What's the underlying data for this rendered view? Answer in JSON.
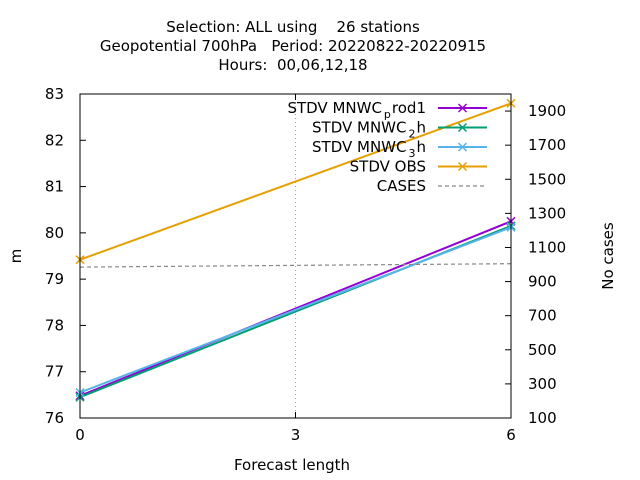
{
  "chart_data": {
    "type": "line",
    "title_lines": [
      "Selection: ALL using    26 stations",
      "Geopotential 700hPa   Period: 20220822-20220915",
      "Hours:  00,06,12,18"
    ],
    "xlabel": "Forecast length",
    "ylabel": "m",
    "y2label": "No cases",
    "x": [
      0,
      6
    ],
    "xticks": [
      "0",
      "3",
      "6"
    ],
    "xlim": [
      0,
      6
    ],
    "ylim": [
      76,
      83
    ],
    "yticks": [
      "76",
      "77",
      "78",
      "79",
      "80",
      "81",
      "82",
      "83"
    ],
    "y2lim": [
      100,
      2000
    ],
    "y2ticks": [
      "100",
      "300",
      "500",
      "700",
      "900",
      "1100",
      "1300",
      "1500",
      "1700",
      "1900"
    ],
    "grid": true,
    "legend_position": "top-right",
    "series": [
      {
        "name": "STDV MNWC_prod1",
        "label_main": "STDV MNWC",
        "label_sub": "p",
        "label_rest": "rod1",
        "color": "#9400d3",
        "marker": "x",
        "values": [
          76.48,
          80.25
        ]
      },
      {
        "name": "STDV MNWC_2h",
        "label_main": "STDV MNWC",
        "label_sub": "2",
        "label_rest": "h",
        "color": "#009e73",
        "marker": "x",
        "values": [
          76.45,
          80.15
        ]
      },
      {
        "name": "STDV MNWC_3h",
        "label_main": "STDV MNWC",
        "label_sub": "3",
        "label_rest": "h",
        "color": "#56b4e9",
        "marker": "x",
        "values": [
          76.55,
          80.12
        ]
      },
      {
        "name": "STDV OBS",
        "label_main": "STDV OBS",
        "label_sub": "",
        "label_rest": "",
        "color": "#e69f00",
        "marker": "x",
        "values": [
          79.42,
          82.8
        ]
      },
      {
        "name": "CASES",
        "label_main": "CASES",
        "label_sub": "",
        "label_rest": "",
        "color": "#888888",
        "marker": "none",
        "dashed": true,
        "axis": "y2",
        "x": [
          0,
          1.5,
          6
        ],
        "values": [
          985,
          990,
          1005
        ]
      }
    ]
  }
}
